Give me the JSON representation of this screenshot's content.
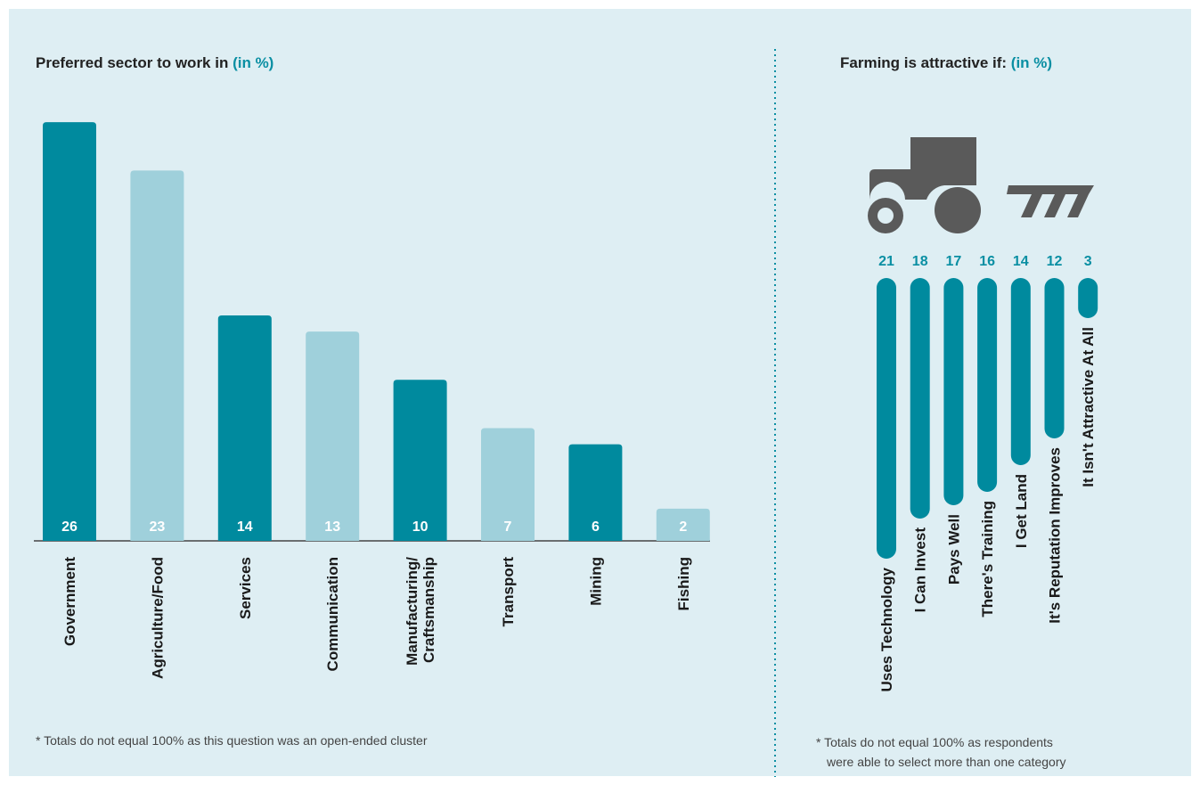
{
  "chart_data": [
    {
      "type": "bar",
      "title": "Preferred sector to work in",
      "title_unit": "(in %)",
      "categories": [
        "Government",
        "Agriculture/Food",
        "Services",
        "Communication",
        "Manufacturing/ Craftsmanship",
        "Transport",
        "Mining",
        "Fishing"
      ],
      "values": [
        26,
        23,
        14,
        13,
        10,
        7,
        6,
        2
      ],
      "colors": [
        "#008a9e",
        "#9fd0db",
        "#008a9e",
        "#9fd0db",
        "#008a9e",
        "#9fd0db",
        "#008a9e",
        "#9fd0db"
      ],
      "footnote": "* Totals do not equal 100% as this question was an open-ended cluster"
    },
    {
      "type": "hanging-bar",
      "title": "Farming is attractive if:",
      "title_unit": "(in %)",
      "categories": [
        "Uses Technology",
        "I Can Invest",
        "Pays Well",
        "There's Training",
        "I Get Land",
        "It's Reputation Improves",
        "It Isn't Attractive At All"
      ],
      "values": [
        21,
        18,
        17,
        16,
        14,
        12,
        3
      ],
      "color": "#008a9e",
      "footnote": [
        "* Totals do not equal 100% as respondents",
        "were able to select more than one category"
      ]
    }
  ]
}
